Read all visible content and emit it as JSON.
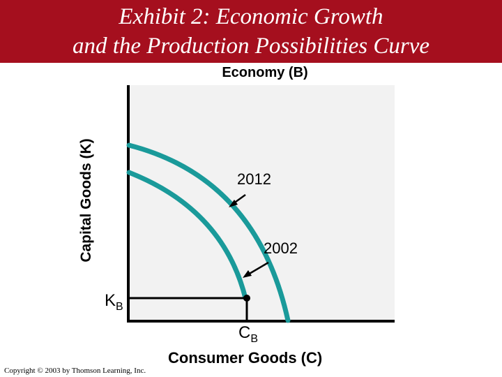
{
  "title": {
    "line1": "Exhibit 2: Economic Growth",
    "line2": "and the Production Possibilities Curve"
  },
  "subtitle": "Economy (B)",
  "axes": {
    "ylabel": "Capital Goods (K)",
    "xlabel": "Consumer Goods (C)"
  },
  "curves": [
    {
      "label": "2012"
    },
    {
      "label": "2002"
    }
  ],
  "point": {
    "k_label": "K",
    "k_sub": "B",
    "c_label": "C",
    "c_sub": "B"
  },
  "colors": {
    "title_bar": "#a50f1e",
    "curve": "#1a9a9a",
    "plot_bg": "#f2f2f2"
  },
  "copyright": "Copyright © 2003 by Thomson Learning, Inc."
}
